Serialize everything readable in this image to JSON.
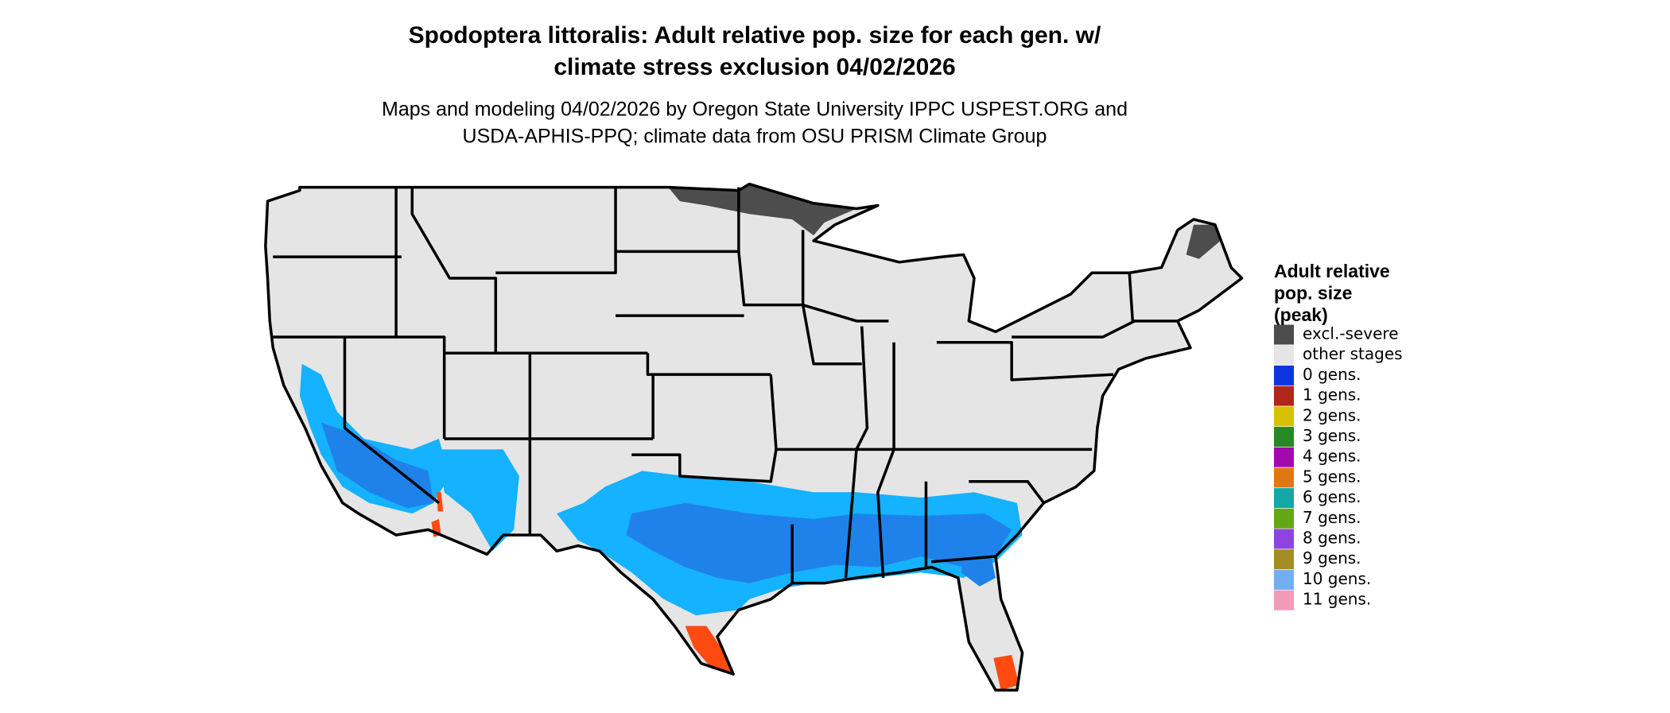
{
  "header": {
    "title": [
      "Spodoptera littoralis: Adult relative pop. size for each gen. w/",
      "climate stress exclusion 04/02/2026"
    ],
    "subtitle": [
      "Maps and modeling 04/02/2026 by Oregon State University IPPC USPEST.ORG and",
      "USDA-APHIS-PPQ; climate data from OSU PRISM Climate Group"
    ]
  },
  "legend": {
    "title": [
      "Adult relative",
      "pop. size",
      "(peak)"
    ],
    "items": [
      {
        "label": "excl.-severe",
        "color": "#4d4d4d"
      },
      {
        "label": "other stages",
        "color": "#e5e5e5"
      },
      {
        "label": "0 gens.",
        "color": "#0a35e0"
      },
      {
        "label": "1 gens.",
        "color": "#b0261a"
      },
      {
        "label": "2 gens.",
        "color": "#d8c200"
      },
      {
        "label": "3 gens.",
        "color": "#268a22"
      },
      {
        "label": "4 gens.",
        "color": "#a30aad"
      },
      {
        "label": "5 gens.",
        "color": "#e07812"
      },
      {
        "label": "6 gens.",
        "color": "#12a8a8"
      },
      {
        "label": "7 gens.",
        "color": "#62a812"
      },
      {
        "label": "8 gens.",
        "color": "#8e44de"
      },
      {
        "label": "9 gens.",
        "color": "#a38c24"
      },
      {
        "label": "10 gens.",
        "color": "#72aef2"
      },
      {
        "label": "11 gens.",
        "color": "#f29ab8"
      }
    ]
  }
}
